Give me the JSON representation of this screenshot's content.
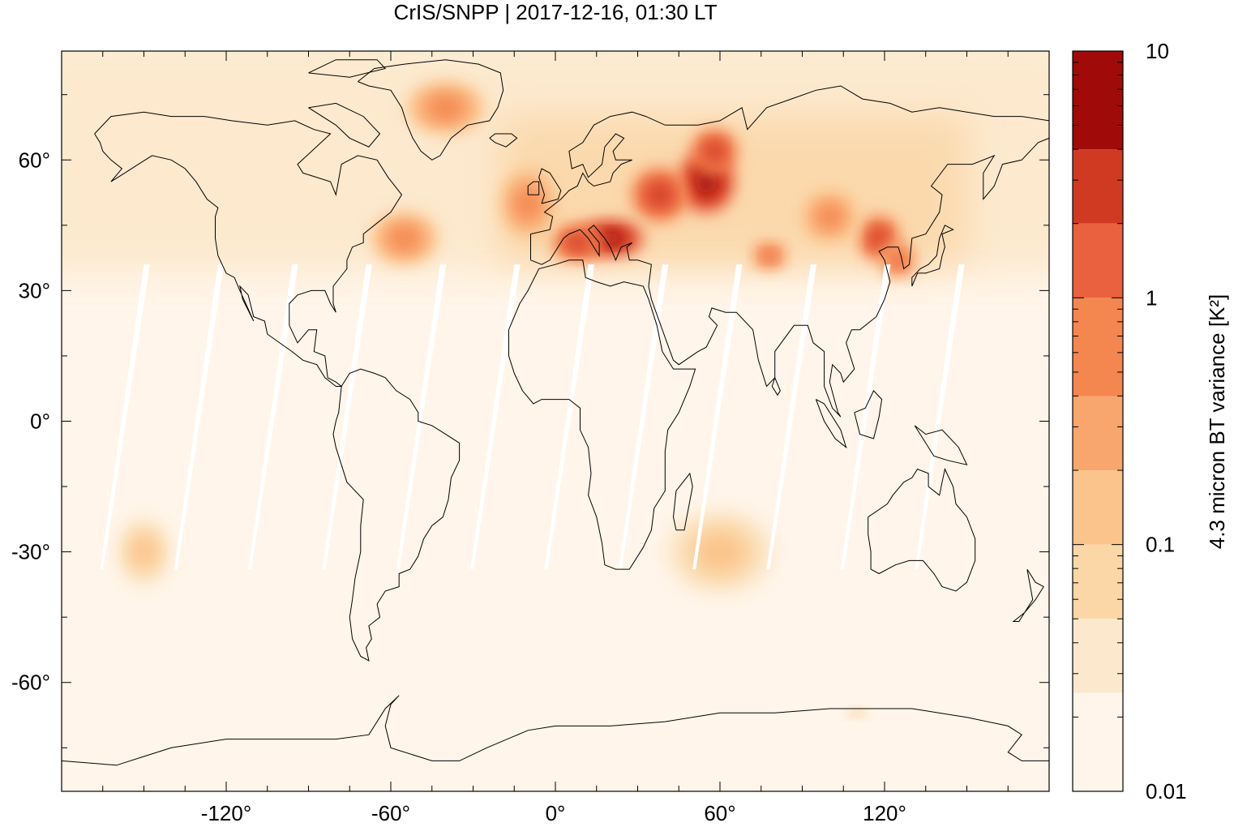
{
  "title": "CrIS/SNPP | 2017-12-16, 01:30 LT",
  "map": {
    "projection": "equirectangular",
    "lon_range": [
      -180,
      180
    ],
    "lat_range": [
      -85,
      85
    ],
    "lon_ticks": [
      {
        "value": -120,
        "label": "-120°"
      },
      {
        "value": -60,
        "label": "-60°"
      },
      {
        "value": 0,
        "label": "0°"
      },
      {
        "value": 60,
        "label": "60°"
      },
      {
        "value": 120,
        "label": "120°"
      }
    ],
    "lat_ticks": [
      {
        "value": 60,
        "label": "60°"
      },
      {
        "value": 30,
        "label": "30°"
      },
      {
        "value": 0,
        "label": "0°"
      },
      {
        "value": -30,
        "label": "-30°"
      },
      {
        "value": -60,
        "label": "-60°"
      }
    ],
    "background_color": "#fff5ea",
    "coastline_color": "#000000"
  },
  "chart_data": {
    "type": "heatmap",
    "variable_label": "4.3 micron BT variance [K²]",
    "colorbar": {
      "scale": "log",
      "range": [
        0.01,
        10
      ],
      "tick_labels": [
        {
          "value": 10,
          "label": "10"
        },
        {
          "value": 1,
          "label": "1"
        },
        {
          "value": 0.1,
          "label": "0.1"
        },
        {
          "value": 0.01,
          "label": "0.01"
        }
      ],
      "bins": [
        {
          "from": 0.01,
          "to": 0.0251,
          "color": "#fff5ea"
        },
        {
          "from": 0.0251,
          "to": 0.0501,
          "color": "#fce8cc"
        },
        {
          "from": 0.0501,
          "to": 0.1,
          "color": "#fbd7a8"
        },
        {
          "from": 0.1,
          "to": 0.2,
          "color": "#fbc48c"
        },
        {
          "from": 0.2,
          "to": 0.4,
          "color": "#f9a56e"
        },
        {
          "from": 0.4,
          "to": 1.0,
          "color": "#f4864f"
        },
        {
          "from": 1.0,
          "to": 2.0,
          "color": "#e9613f"
        },
        {
          "from": 2.0,
          "to": 4.0,
          "color": "#d03a23"
        },
        {
          "from": 4.0,
          "to": 10,
          "color": "#a00b0a"
        }
      ]
    },
    "hotspots": [
      {
        "lon": 20,
        "lat": 42,
        "level": 4.5,
        "rx": 12,
        "ry": 4
      },
      {
        "lon": 8,
        "lat": 41,
        "level": 3.0,
        "rx": 9,
        "ry": 4
      },
      {
        "lon": 55,
        "lat": 55,
        "level": 4.0,
        "rx": 10,
        "ry": 7
      },
      {
        "lon": 58,
        "lat": 62,
        "level": 3.0,
        "rx": 8,
        "ry": 5
      },
      {
        "lon": 38,
        "lat": 52,
        "level": 2.0,
        "rx": 10,
        "ry": 6
      },
      {
        "lon": 118,
        "lat": 42,
        "level": 3.0,
        "rx": 7,
        "ry": 5
      },
      {
        "lon": 125,
        "lat": 37,
        "level": 1.5,
        "rx": 6,
        "ry": 4
      },
      {
        "lon": 78,
        "lat": 38,
        "level": 1.2,
        "rx": 6,
        "ry": 3
      },
      {
        "lon": -40,
        "lat": 72,
        "level": 0.6,
        "rx": 14,
        "ry": 6
      },
      {
        "lon": 100,
        "lat": 47,
        "level": 0.7,
        "rx": 10,
        "ry": 6
      },
      {
        "lon": -10,
        "lat": 50,
        "level": 0.6,
        "rx": 10,
        "ry": 8
      },
      {
        "lon": -55,
        "lat": 42,
        "level": 0.4,
        "rx": 12,
        "ry": 6
      },
      {
        "lon": -150,
        "lat": -30,
        "level": 0.15,
        "rx": 10,
        "ry": 8
      },
      {
        "lon": 60,
        "lat": -30,
        "level": 0.12,
        "rx": 20,
        "ry": 10
      },
      {
        "lon": 110,
        "lat": -67,
        "level": 0.3,
        "rx": 3,
        "ry": 1
      }
    ]
  }
}
